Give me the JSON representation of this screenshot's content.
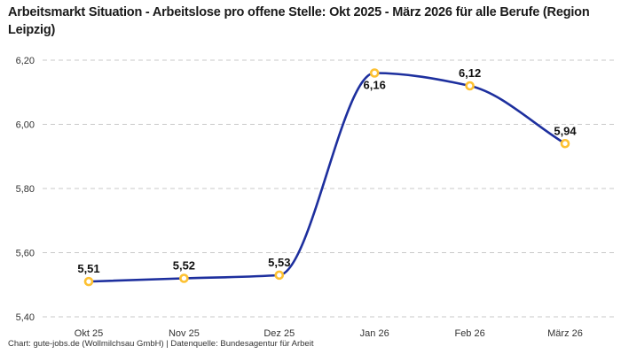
{
  "header": {
    "title": "Arbeitsmarkt Situation - Arbeitslose pro offene Stelle: Okt 2025 - März 2026 für alle Berufe (Region Leipzig)"
  },
  "chart_data": {
    "type": "line",
    "title": "Arbeitsmarkt Situation - Arbeitslose pro offene Stelle: Okt 2025 - März 2026 für alle Berufe (Region Leipzig)",
    "categories": [
      "Okt 25",
      "Nov 25",
      "Dez 25",
      "Jan 26",
      "Feb 26",
      "März 26"
    ],
    "values": [
      5.51,
      5.52,
      5.53,
      6.16,
      6.12,
      5.94
    ],
    "value_labels": [
      "5,51",
      "5,52",
      "5,53",
      "6,16",
      "6,12",
      "5,94"
    ],
    "label_positions": [
      "above",
      "above",
      "above",
      "below",
      "above",
      "above"
    ],
    "ylim": [
      5.4,
      6.2
    ],
    "yticks": [
      5.4,
      5.6,
      5.8,
      6.0,
      6.2
    ],
    "ytick_labels": [
      "5,40",
      "5,60",
      "5,80",
      "6,00",
      "6,20"
    ],
    "xlabel": "",
    "ylabel": "",
    "legend": "none",
    "grid": "horizontal-dashed",
    "curve": "monotone",
    "line_color": "#1D2F9E",
    "marker_ring_color": "#FDC132",
    "marker_fill_color": "#FFFFFF",
    "grid_color": "#C9C9C9"
  },
  "footer": {
    "credit": "Chart: gute-jobs.de (Wollmilchsau GmbH) | Datenquelle: Bundesagentur für Arbeit"
  }
}
